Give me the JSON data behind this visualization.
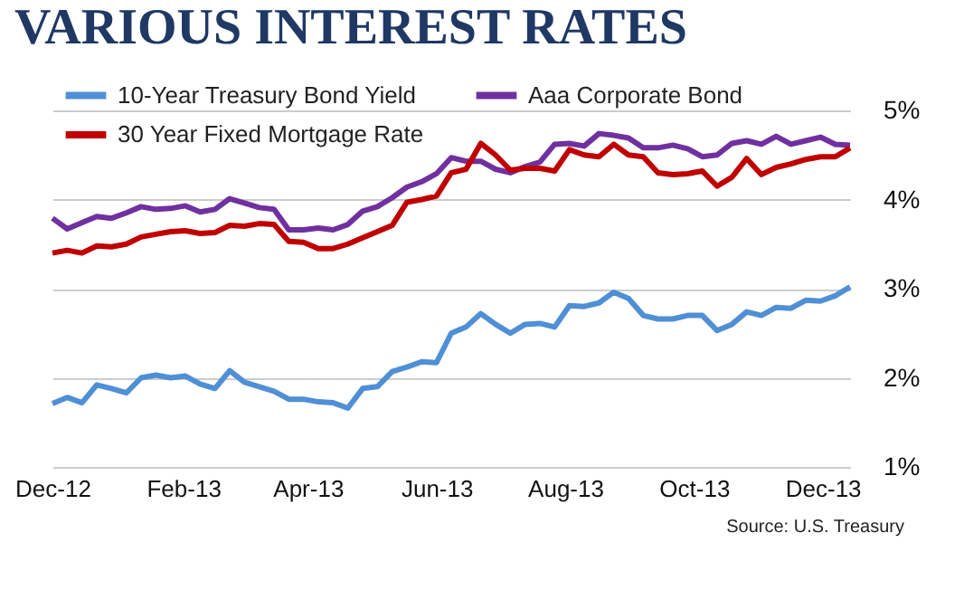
{
  "chart_data": {
    "type": "line",
    "title": "VARIOUS INTEREST RATES",
    "x": [
      "2012-12-01",
      "2012-12-08",
      "2012-12-15",
      "2012-12-22",
      "2012-12-29",
      "2013-01-05",
      "2013-01-12",
      "2013-01-19",
      "2013-01-26",
      "2013-02-02",
      "2013-02-09",
      "2013-02-16",
      "2013-02-23",
      "2013-03-02",
      "2013-03-09",
      "2013-03-16",
      "2013-03-23",
      "2013-03-30",
      "2013-04-06",
      "2013-04-13",
      "2013-04-20",
      "2013-04-27",
      "2013-05-04",
      "2013-05-11",
      "2013-05-18",
      "2013-05-25",
      "2013-06-01",
      "2013-06-08",
      "2013-06-15",
      "2013-06-22",
      "2013-06-29",
      "2013-07-06",
      "2013-07-13",
      "2013-07-20",
      "2013-07-27",
      "2013-08-03",
      "2013-08-10",
      "2013-08-17",
      "2013-08-24",
      "2013-08-31",
      "2013-09-07",
      "2013-09-14",
      "2013-09-21",
      "2013-09-28",
      "2013-10-05",
      "2013-10-12",
      "2013-10-19",
      "2013-10-26",
      "2013-11-02",
      "2013-11-09",
      "2013-11-16",
      "2013-11-23",
      "2013-11-30",
      "2013-12-07",
      "2013-12-14"
    ],
    "series": [
      {
        "name": "10-Year Treasury Bond Yield",
        "color": "#4f8fd6",
        "values": [
          1.71,
          1.78,
          1.72,
          1.92,
          1.88,
          1.83,
          2.0,
          2.03,
          2.0,
          2.02,
          1.93,
          1.88,
          2.08,
          1.95,
          1.9,
          1.85,
          1.76,
          1.76,
          1.73,
          1.72,
          1.66,
          1.88,
          1.9,
          2.07,
          2.12,
          2.18,
          2.17,
          2.5,
          2.57,
          2.72,
          2.6,
          2.5,
          2.6,
          2.61,
          2.57,
          2.81,
          2.8,
          2.84,
          2.96,
          2.89,
          2.7,
          2.66,
          2.66,
          2.7,
          2.7,
          2.53,
          2.6,
          2.74,
          2.7,
          2.79,
          2.78,
          2.87,
          2.86,
          2.92,
          3.02
        ]
      },
      {
        "name": "Aaa Corporate Bond",
        "color": "#7030a0",
        "values": [
          3.79,
          3.67,
          3.74,
          3.81,
          3.79,
          3.85,
          3.92,
          3.89,
          3.9,
          3.93,
          3.86,
          3.89,
          4.01,
          3.96,
          3.91,
          3.89,
          3.66,
          3.66,
          3.68,
          3.66,
          3.72,
          3.87,
          3.92,
          4.02,
          4.14,
          4.2,
          4.29,
          4.47,
          4.43,
          4.43,
          4.34,
          4.3,
          4.37,
          4.42,
          4.62,
          4.63,
          4.6,
          4.74,
          4.72,
          4.69,
          4.58,
          4.58,
          4.61,
          4.57,
          4.48,
          4.5,
          4.63,
          4.66,
          4.62,
          4.71,
          4.62,
          4.66,
          4.7,
          4.62,
          4.61
        ]
      },
      {
        "name": "30 Year Fixed Mortgage Rate",
        "color": "#c00000",
        "values": [
          3.4,
          3.43,
          3.4,
          3.48,
          3.47,
          3.5,
          3.58,
          3.61,
          3.64,
          3.65,
          3.62,
          3.63,
          3.71,
          3.7,
          3.73,
          3.72,
          3.53,
          3.52,
          3.45,
          3.45,
          3.5,
          3.57,
          3.64,
          3.71,
          3.97,
          4.0,
          4.04,
          4.3,
          4.34,
          4.63,
          4.5,
          4.33,
          4.35,
          4.35,
          4.32,
          4.56,
          4.5,
          4.48,
          4.62,
          4.5,
          4.48,
          4.3,
          4.28,
          4.29,
          4.32,
          4.15,
          4.25,
          4.46,
          4.28,
          4.36,
          4.4,
          4.45,
          4.48,
          4.48,
          4.58
        ]
      }
    ],
    "xlim": [
      "2012-12-01",
      "2013-12-14"
    ],
    "xticks": [
      {
        "value": "2012-12-01",
        "label": "Dec-12"
      },
      {
        "value": "2013-02-01",
        "label": "Feb-13"
      },
      {
        "value": "2013-04-01",
        "label": "Apr-13"
      },
      {
        "value": "2013-06-01",
        "label": "Jun-13"
      },
      {
        "value": "2013-08-01",
        "label": "Aug-13"
      },
      {
        "value": "2013-10-01",
        "label": "Oct-13"
      },
      {
        "value": "2013-12-01",
        "label": "Dec-13"
      }
    ],
    "ylim": [
      1,
      5
    ],
    "yticks": [
      {
        "value": 1,
        "label": "1%"
      },
      {
        "value": 2,
        "label": "2%"
      },
      {
        "value": 3,
        "label": "3%"
      },
      {
        "value": 4,
        "label": "4%"
      },
      {
        "value": 5,
        "label": "5%"
      }
    ],
    "grid": "y",
    "legend": "top left",
    "marker": "none",
    "line_style": "solid",
    "annotations": [
      "Source:  U.S. Treasury"
    ]
  }
}
